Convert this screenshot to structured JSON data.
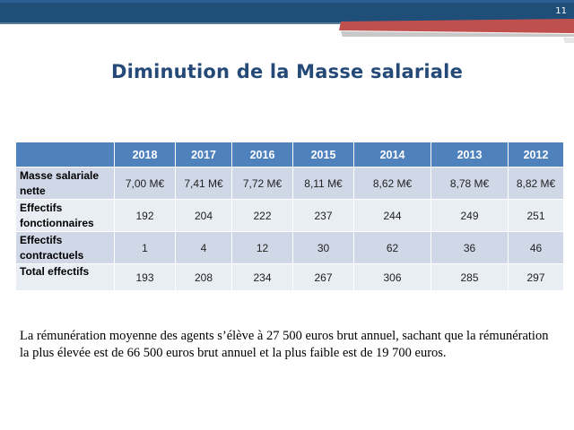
{
  "slide": {
    "number": "11"
  },
  "title": "Diminution de la Masse salariale",
  "table": {
    "years": [
      "2018",
      "2017",
      "2016",
      "2015",
      "2014",
      "2013",
      "2012"
    ],
    "rows": [
      {
        "label": "Masse salariale nette",
        "values": [
          "7,00 M€",
          "7,41 M€",
          "7,72 M€",
          "8,11 M€",
          "8,62 M€",
          "8,78 M€",
          "8,82 M€"
        ]
      },
      {
        "label": "Effectifs fonctionnaires",
        "values": [
          "192",
          "204",
          "222",
          "237",
          "244",
          "249",
          "251"
        ]
      },
      {
        "label": "Effectifs contractuels",
        "values": [
          "1",
          "4",
          "12",
          "30",
          "62",
          "36",
          "46"
        ]
      },
      {
        "label": "Total effectifs",
        "values": [
          "193",
          "208",
          "234",
          "267",
          "306",
          "285",
          "297"
        ]
      }
    ]
  },
  "note": "La rémunération moyenne des agents s’élève à 27 500 euros brut annuel, sachant que la rémunération la plus élevée est de 66 500 euros brut annuel et la plus faible est de 19 700 euros.",
  "colors": {
    "banner_blue": "#1f4e79",
    "banner_red": "#c0504d",
    "title": "#254a78",
    "header": "#4f81bd",
    "row_dark": "#d0d8e8",
    "row_light": "#e9edf4"
  }
}
